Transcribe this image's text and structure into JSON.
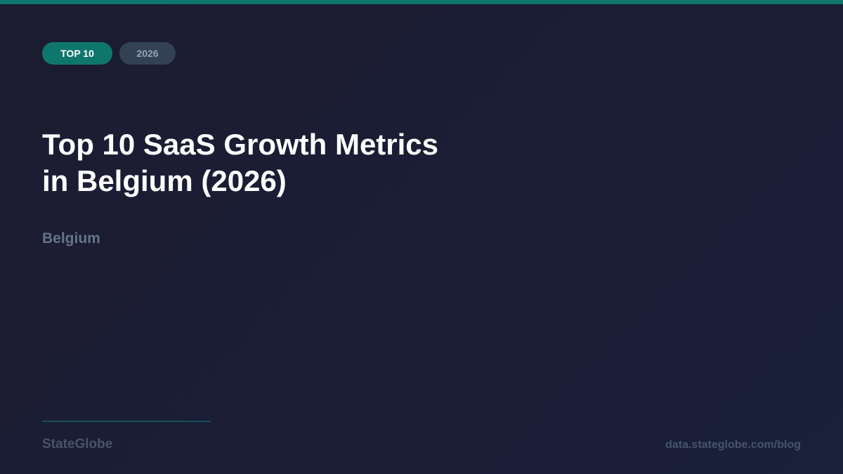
{
  "badges": {
    "primary": "TOP 10",
    "secondary": "2026"
  },
  "title_lines": [
    "Top 10 SaaS Growth Metrics",
    "in Belgium (2026)"
  ],
  "subtitle": "Belgium",
  "footer": {
    "brand": "StateGlobe",
    "url": "data.stateglobe.com/blog"
  },
  "colors": {
    "accent": "#0f766e",
    "background": "#1c1c30",
    "muted": "#475569"
  }
}
